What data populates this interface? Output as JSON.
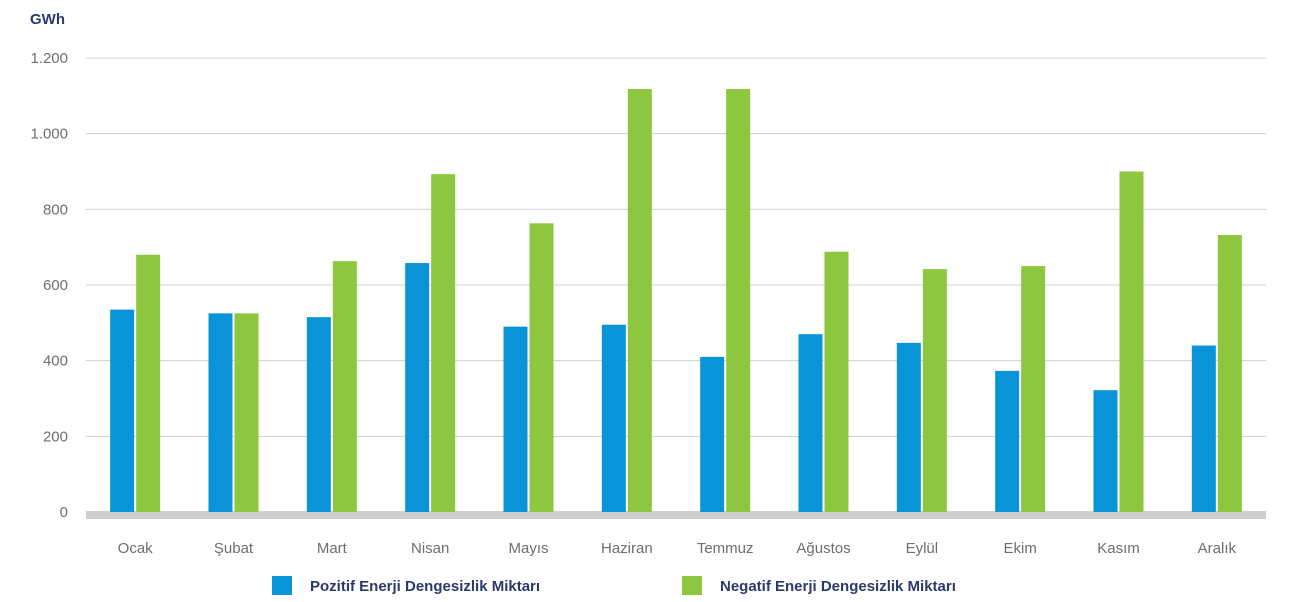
{
  "chart_data": {
    "type": "bar",
    "unit_label": "GWh",
    "categories": [
      "Ocak",
      "Şubat",
      "Mart",
      "Nisan",
      "Mayıs",
      "Haziran",
      "Temmuz",
      "Ağustos",
      "Eylül",
      "Ekim",
      "Kasım",
      "Aralık"
    ],
    "series": [
      {
        "name": "Pozitif Enerji Dengesizlik Miktarı",
        "color": "#0a94d8",
        "values": [
          535,
          525,
          515,
          658,
          490,
          495,
          410,
          470,
          447,
          373,
          322,
          440
        ]
      },
      {
        "name": "Negatif Enerji Dengesizlik Miktarı",
        "color": "#8dc63f",
        "values": [
          680,
          525,
          663,
          893,
          763,
          1118,
          1118,
          688,
          642,
          650,
          900,
          732
        ]
      }
    ],
    "yticks": [
      0,
      200,
      400,
      600,
      800,
      1000,
      1200
    ],
    "ytick_labels": [
      "0",
      "200",
      "400",
      "600",
      "800",
      "1.000",
      "1.200"
    ],
    "ylim": [
      0,
      1200
    ],
    "grid": true,
    "legend_position": "bottom",
    "colors": {
      "unit_label": "#2b3a6b",
      "tick_text": "#6d6e71",
      "gridline": "#cfcfcf",
      "baseline": "#cfcfcf",
      "legend_text": "#2b3a6b"
    }
  }
}
